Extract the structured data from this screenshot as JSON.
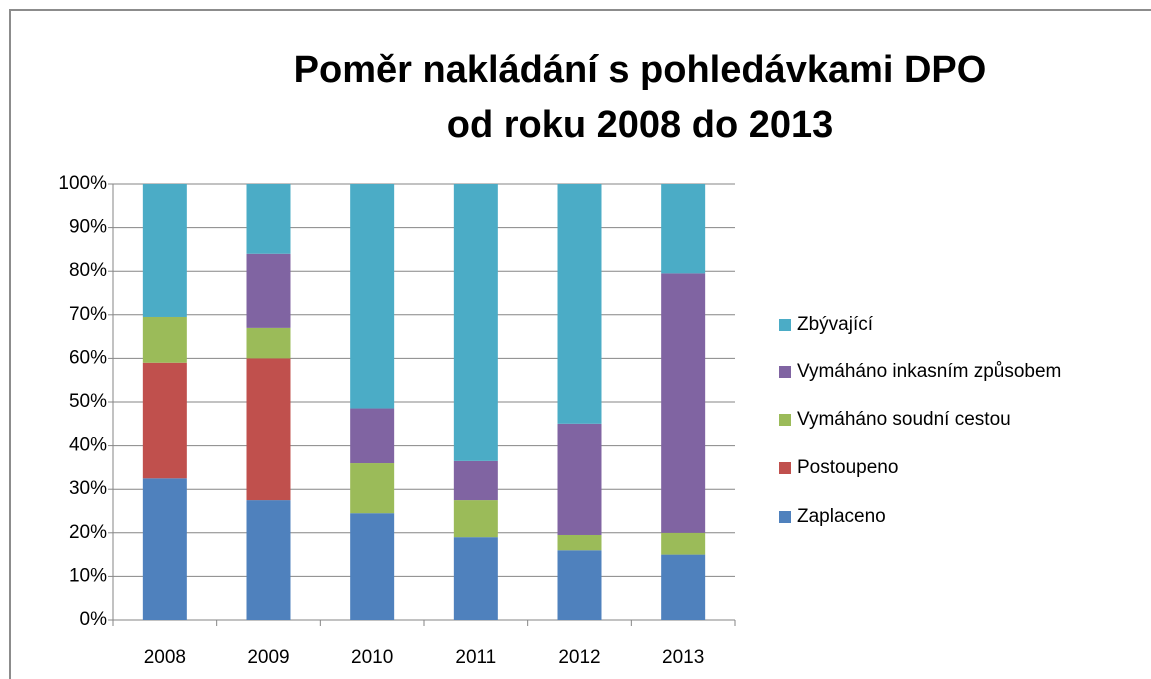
{
  "chart_data": {
    "type": "stacked_bar",
    "title": [
      "Poměr nakládání s pohledávkami DPO",
      "od roku 2008 do 2013"
    ],
    "categories": [
      "2008",
      "2009",
      "2010",
      "2011",
      "2012",
      "2013"
    ],
    "series": [
      {
        "name": "Zaplaceno",
        "color": "#4f81bd",
        "values": [
          32.5,
          27.5,
          24.5,
          19,
          16,
          15
        ]
      },
      {
        "name": "Postoupeno",
        "color": "#c0504d",
        "values": [
          26.5,
          32.5,
          0,
          0,
          0,
          0
        ]
      },
      {
        "name": "Vymáháno soudní cestou",
        "color": "#9bbb59",
        "values": [
          10.5,
          7,
          11.5,
          8.5,
          3.5,
          5
        ]
      },
      {
        "name": "Vymáháno inkasním způsobem",
        "color": "#8064a2",
        "values": [
          0,
          17,
          12.5,
          9,
          25.5,
          59.5
        ]
      },
      {
        "name": "Zbývající",
        "color": "#4bacc6",
        "values": [
          30.5,
          16,
          51.5,
          63.5,
          55,
          20.5
        ]
      }
    ],
    "ylim": [
      0,
      100
    ],
    "yticks": [
      {
        "value": 0,
        "label": "0%"
      },
      {
        "value": 10,
        "label": "10%"
      },
      {
        "value": 20,
        "label": "20%"
      },
      {
        "value": 30,
        "label": "30%"
      },
      {
        "value": 40,
        "label": "40%"
      },
      {
        "value": 50,
        "label": "50%"
      },
      {
        "value": 60,
        "label": "60%"
      },
      {
        "value": 70,
        "label": "70%"
      },
      {
        "value": 80,
        "label": "80%"
      },
      {
        "value": 90,
        "label": "90%"
      },
      {
        "value": 100,
        "label": "100%"
      }
    ],
    "grid": true,
    "legend": "right"
  }
}
